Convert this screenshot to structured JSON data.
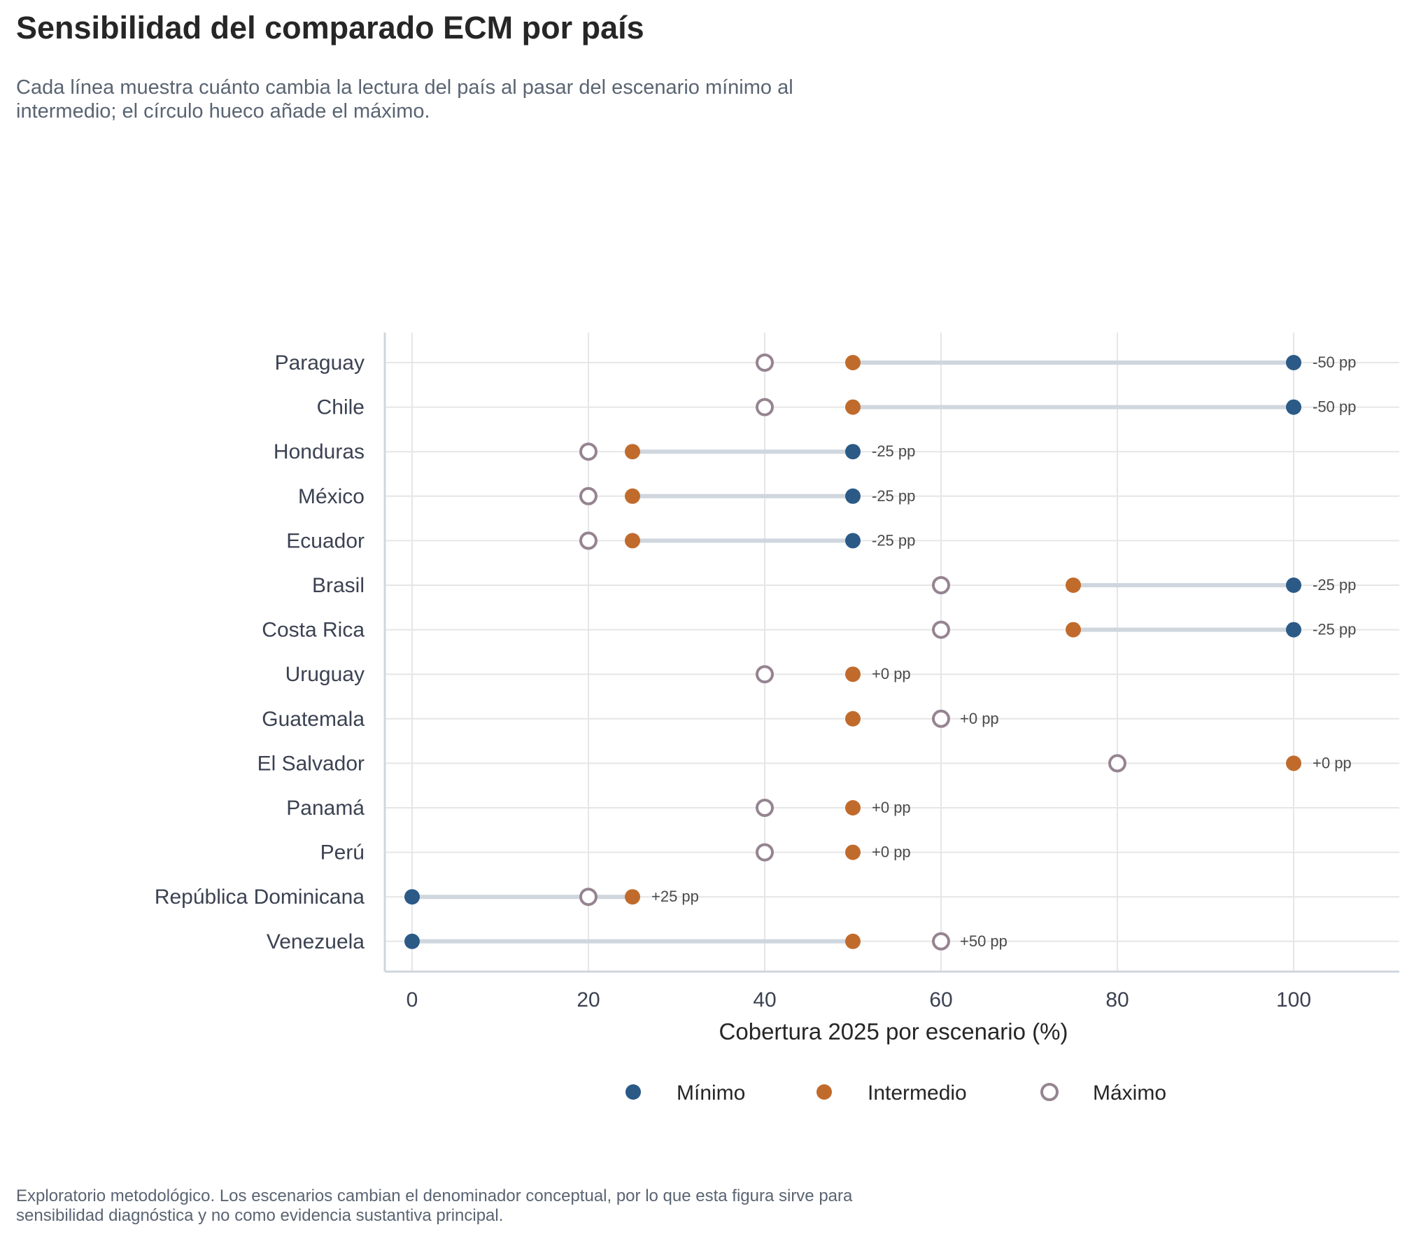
{
  "title": "Sensibilidad del comparado ECM por país",
  "subtitle": "Cada línea muestra cuánto cambia la lectura del país al pasar del escenario mínimo al intermedio; el círculo hueco añade el máximo.",
  "footnote": "Exploratorio metodológico. Los escenarios cambian el denominador conceptual, por lo que esta figura sirve para sensibilidad diagnóstica y no como evidencia sustantiva principal.",
  "colors": {
    "minimo": "#2b5a87",
    "intermedio": "#c06b2c",
    "maximo": "#968491",
    "connector": "#cfd6de",
    "grid": "#e6e6e6",
    "axis": "#cfd6de"
  },
  "chart_data": {
    "type": "dumbbell",
    "title": "Sensibilidad del comparado ECM por país",
    "xlabel": "Cobertura 2025 por escenario (%)",
    "ylabel": "",
    "xlim": [
      -3,
      112
    ],
    "xticks": [
      0,
      20,
      40,
      60,
      80,
      100
    ],
    "grid": true,
    "legend_position": "bottom",
    "legend": [
      {
        "key": "minimo",
        "label": "Mínimo",
        "marker": "filled"
      },
      {
        "key": "intermedio",
        "label": "Intermedio",
        "marker": "filled"
      },
      {
        "key": "maximo",
        "label": "Máximo",
        "marker": "hollow"
      }
    ],
    "countries": [
      {
        "name": "Paraguay",
        "minimo": 100,
        "intermedio": 50,
        "maximo": 40,
        "delta_label": "-50 pp"
      },
      {
        "name": "Chile",
        "minimo": 100,
        "intermedio": 50,
        "maximo": 40,
        "delta_label": "-50 pp"
      },
      {
        "name": "Honduras",
        "minimo": 50,
        "intermedio": 25,
        "maximo": 20,
        "delta_label": "-25 pp"
      },
      {
        "name": "México",
        "minimo": 50,
        "intermedio": 25,
        "maximo": 20,
        "delta_label": "-25 pp"
      },
      {
        "name": "Ecuador",
        "minimo": 50,
        "intermedio": 25,
        "maximo": 20,
        "delta_label": "-25 pp"
      },
      {
        "name": "Brasil",
        "minimo": 100,
        "intermedio": 75,
        "maximo": 60,
        "delta_label": "-25 pp"
      },
      {
        "name": "Costa Rica",
        "minimo": 100,
        "intermedio": 75,
        "maximo": 60,
        "delta_label": "-25 pp"
      },
      {
        "name": "Uruguay",
        "minimo": 50,
        "intermedio": 50,
        "maximo": 40,
        "delta_label": "+0 pp"
      },
      {
        "name": "Guatemala",
        "minimo": 50,
        "intermedio": 50,
        "maximo": 60,
        "delta_label": "+0 pp"
      },
      {
        "name": "El Salvador",
        "minimo": 100,
        "intermedio": 100,
        "maximo": 80,
        "delta_label": "+0 pp"
      },
      {
        "name": "Panamá",
        "minimo": 50,
        "intermedio": 50,
        "maximo": 40,
        "delta_label": "+0 pp"
      },
      {
        "name": "Perú",
        "minimo": 50,
        "intermedio": 50,
        "maximo": 40,
        "delta_label": "+0 pp"
      },
      {
        "name": "República Dominicana",
        "minimo": 0,
        "intermedio": 25,
        "maximo": 20,
        "delta_label": "+25 pp"
      },
      {
        "name": "Venezuela",
        "minimo": 0,
        "intermedio": 50,
        "maximo": 60,
        "delta_label": "+50 pp"
      }
    ]
  }
}
